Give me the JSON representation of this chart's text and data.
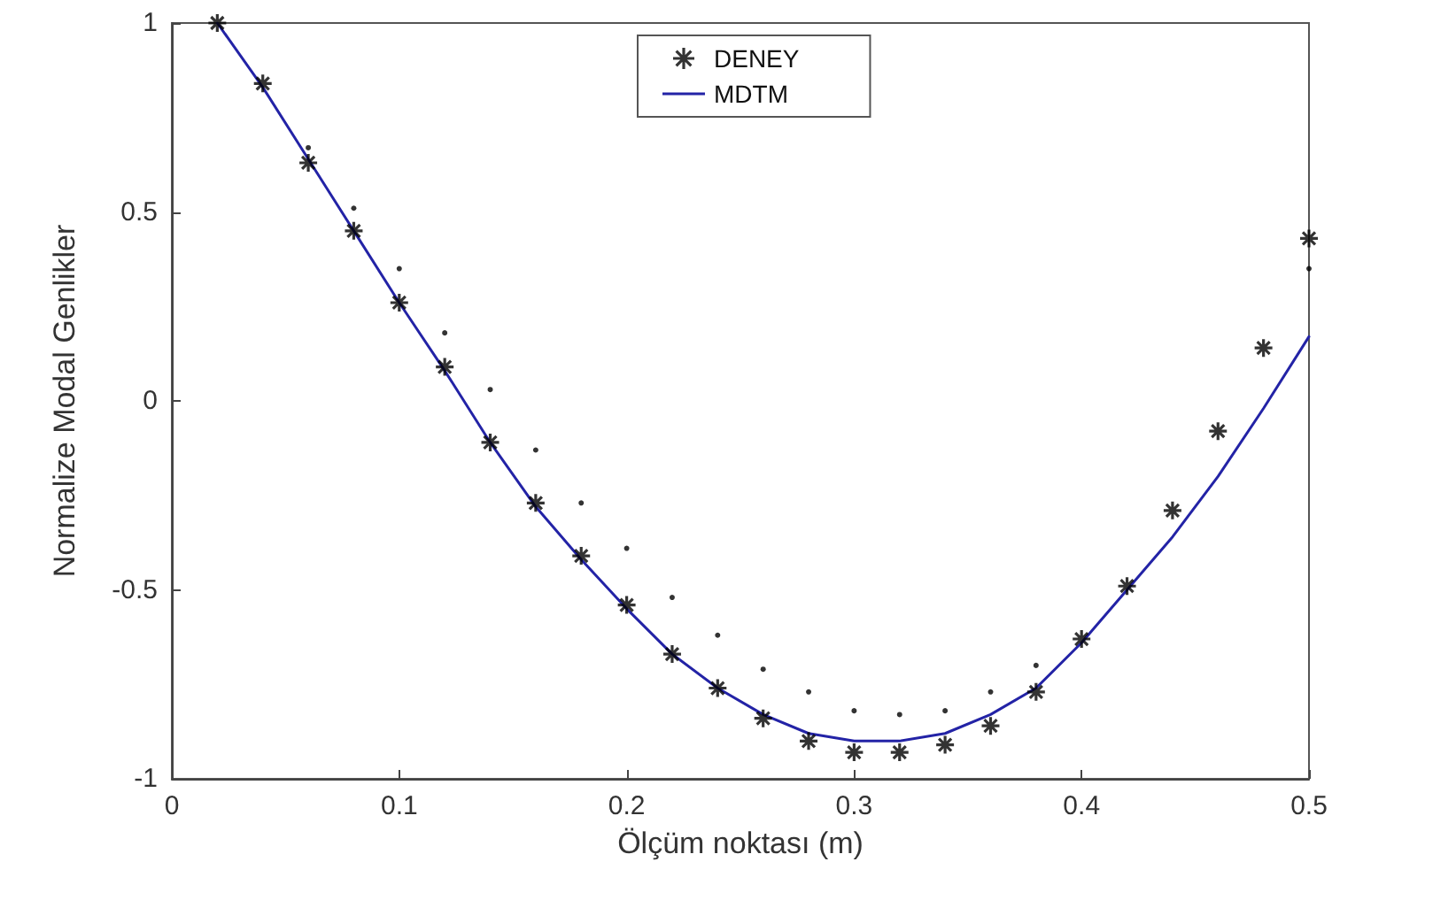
{
  "chart_data": {
    "type": "scatter",
    "xlabel": "Ölçüm noktası (m)",
    "ylabel": "Normalize Modal Genlikler",
    "x": [
      0.02,
      0.04,
      0.06,
      0.08,
      0.1,
      0.12,
      0.14,
      0.16,
      0.18,
      0.2,
      0.22,
      0.24,
      0.26,
      0.28,
      0.3,
      0.32,
      0.34,
      0.36,
      0.38,
      0.4,
      0.42,
      0.44,
      0.46,
      0.48,
      0.5
    ],
    "series": [
      {
        "name": "DENEY",
        "marker": "cross",
        "color": "#000000",
        "values": [
          1.0,
          0.84,
          0.63,
          0.45,
          0.26,
          0.09,
          -0.11,
          -0.27,
          -0.41,
          -0.54,
          -0.67,
          -0.76,
          -0.84,
          -0.9,
          -0.93,
          -0.93,
          -0.91,
          -0.86,
          -0.77,
          -0.63,
          -0.49,
          -0.29,
          -0.08,
          0.14,
          0.43
        ]
      },
      {
        "marker": "circle",
        "color": "#000000",
        "values": [
          null,
          null,
          0.67,
          0.51,
          0.35,
          0.18,
          0.03,
          -0.13,
          -0.27,
          -0.39,
          -0.52,
          -0.62,
          -0.71,
          -0.77,
          -0.82,
          -0.83,
          -0.82,
          -0.77,
          -0.7,
          null,
          null,
          null,
          null,
          null,
          0.35
        ]
      },
      {
        "name": "MDTM",
        "type": "line",
        "marker": "none",
        "line_style": "solid",
        "color": "#2323a6",
        "values": [
          1.0,
          0.83,
          0.64,
          0.45,
          0.26,
          0.08,
          -0.11,
          -0.28,
          -0.42,
          -0.55,
          -0.67,
          -0.76,
          -0.83,
          -0.88,
          -0.9,
          -0.9,
          -0.88,
          -0.83,
          -0.76,
          -0.64,
          -0.5,
          -0.36,
          -0.2,
          -0.02,
          0.17
        ]
      }
    ],
    "xlim": [
      0,
      0.5
    ],
    "xticks": [
      0,
      0.1,
      0.2,
      0.3,
      0.4,
      0.5
    ],
    "ylim": [
      -1,
      1
    ],
    "yticks": [
      -1,
      -0.5,
      0,
      0.5,
      1
    ],
    "grid": false,
    "legend": "top"
  }
}
